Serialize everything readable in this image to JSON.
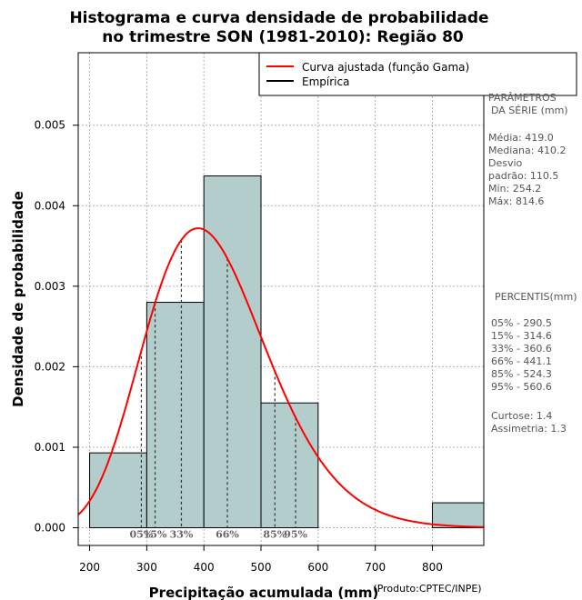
{
  "chart_data": {
    "type": "histogram",
    "title_line1": "Histograma e curva densidade de probabilidade",
    "title_line2": "no trimestre SON (1981-2010): Região 80",
    "xlabel": "Precipitação acumulada (mm)",
    "ylabel": "Densidade de probabilidade",
    "credit": "(Produto:CPTEC/INPE)",
    "xlim": [
      180,
      890
    ],
    "ylim": [
      -0.00022,
      0.0059
    ],
    "x_ticks": [
      200,
      300,
      400,
      500,
      600,
      700,
      800
    ],
    "y_ticks": [
      0.0,
      0.001,
      0.002,
      0.003,
      0.004,
      0.005
    ],
    "y_tick_labels": [
      "0.000",
      "0.001",
      "0.002",
      "0.003",
      "0.004",
      "0.005"
    ],
    "grid": true,
    "bins": [
      {
        "from": 200,
        "to": 300,
        "density": 0.00093
      },
      {
        "from": 300,
        "to": 400,
        "density": 0.0028
      },
      {
        "from": 400,
        "to": 500,
        "density": 0.00437
      },
      {
        "from": 500,
        "to": 600,
        "density": 0.00155
      },
      {
        "from": 600,
        "to": 700,
        "density": 0.0
      },
      {
        "from": 700,
        "to": 800,
        "density": 0.0
      },
      {
        "from": 800,
        "to": 900,
        "density": 0.00031
      }
    ],
    "gamma_fit": {
      "mean": 419.0,
      "sd": 110.5,
      "peak_density": 0.00372,
      "mode": 390
    },
    "legend": [
      {
        "label": "Curva ajustada (função Gama)",
        "color": "#ff0000"
      },
      {
        "label": "Empírica",
        "color": "#000000"
      }
    ],
    "percentile_markers": [
      {
        "label": "05%",
        "value": 290.5
      },
      {
        "label": "15%",
        "value": 314.6
      },
      {
        "label": "33%",
        "value": 360.6
      },
      {
        "label": "66%",
        "value": 441.1
      },
      {
        "label": "85%",
        "value": 524.3
      },
      {
        "label": "95%",
        "value": 560.6
      }
    ],
    "bar_color": "#b3cccc",
    "curve_color": "#ff0000"
  },
  "side_panel": {
    "params_title_1": "PARÂMETROS",
    "params_title_2": "DA SÉRIE (mm)",
    "params_lines": [
      "Média:  419.0",
      "Mediana:  410.2",
      "Desvio",
      "padrão:  110.5",
      "Mín:  254.2",
      "Máx:  814.6"
    ],
    "percentis_title": "PERCENTIS(mm)",
    "percentis_lines": [
      "05% -   290.5",
      "15% -   314.6",
      "33% -   360.6",
      "66% -   441.1",
      "85% -   524.3",
      "95% -   560.6"
    ],
    "stats_lines": [
      "Curtose:  1.4",
      "Assimetria:  1.3"
    ]
  }
}
